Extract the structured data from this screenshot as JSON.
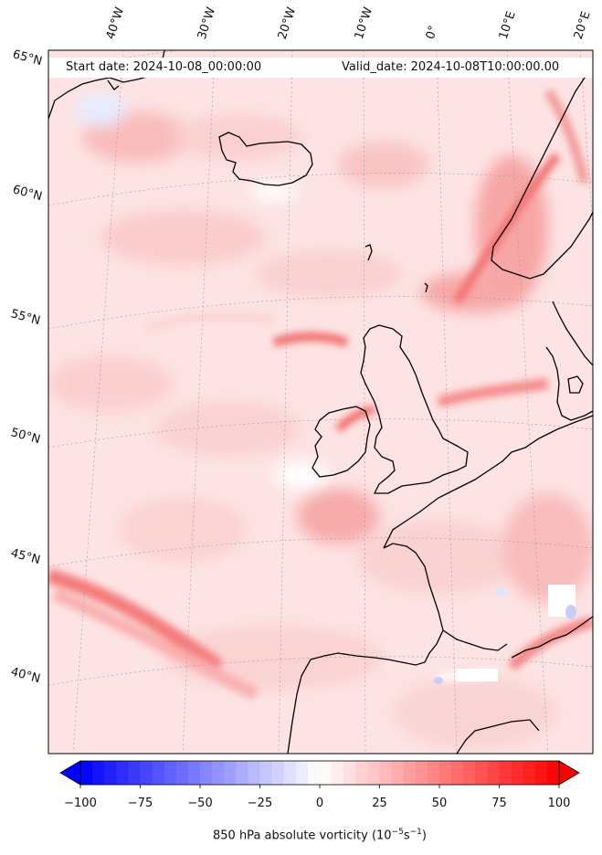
{
  "map": {
    "header_left": "Start date: 2024-10-08_00:00:00",
    "header_right": "Valid_date: 2024-10-08T10:00:00.00",
    "lat_labels": [
      "65°N",
      "60°N",
      "55°N",
      "50°N",
      "45°N",
      "40°N"
    ],
    "lon_labels": [
      "40°W",
      "30°W",
      "20°W",
      "10°W",
      "0°",
      "10°E",
      "20°E"
    ]
  },
  "colorbar": {
    "ticks": [
      "−100",
      "−75",
      "−50",
      "−25",
      "0",
      "25",
      "50",
      "75",
      "100"
    ],
    "label_text": "850 hPa absolute vorticity (10",
    "label_sup1": "−5",
    "label_mid": "s",
    "label_sup2": "−1",
    "label_end": ")",
    "min_color": "#0000ff",
    "mid_color": "#ffffff",
    "max_color": "#ff0000",
    "range": [
      -100,
      100
    ],
    "levels": 40
  }
}
